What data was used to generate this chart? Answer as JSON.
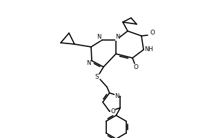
{
  "background_color": "#ffffff",
  "line_color": "#000000",
  "line_width": 1.2,
  "figsize": [
    3.0,
    2.0
  ],
  "dpi": 100,
  "atoms": {
    "N_labels": [
      "N",
      "N",
      "N",
      "NH"
    ],
    "O_labels": [
      "O",
      "O"
    ],
    "S_label": "S"
  }
}
